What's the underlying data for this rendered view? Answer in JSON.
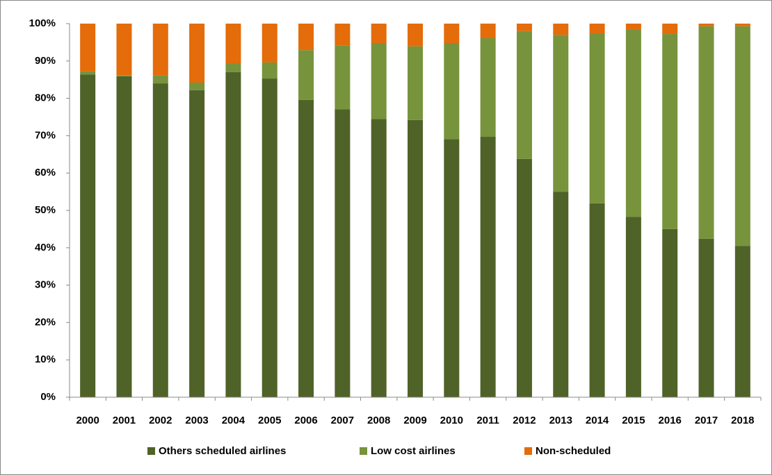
{
  "chart_data": {
    "type": "stacked-bar",
    "categories": [
      "2000",
      "2001",
      "2002",
      "2003",
      "2004",
      "2005",
      "2006",
      "2007",
      "2008",
      "2009",
      "2010",
      "2011",
      "2012",
      "2013",
      "2014",
      "2015",
      "2016",
      "2017",
      "2018"
    ],
    "series": [
      {
        "name": "Others scheduled airlines",
        "color": "#4f6228",
        "values": [
          86.4,
          85.9,
          84.0,
          82.2,
          87.0,
          85.3,
          79.6,
          77.1,
          74.5,
          74.2,
          69.1,
          69.7,
          63.8,
          55.0,
          51.9,
          48.3,
          45.0,
          42.4,
          40.5
        ]
      },
      {
        "name": "Low cost airlines",
        "color": "#77933c",
        "values": [
          0.8,
          0.3,
          2.2,
          2.0,
          2.4,
          4.3,
          13.3,
          17.1,
          20.3,
          19.7,
          25.7,
          26.4,
          34.2,
          42.0,
          45.5,
          50.2,
          52.2,
          56.9,
          58.8
        ]
      },
      {
        "name": "Non-scheduled",
        "color": "#e46c0a",
        "values": [
          12.8,
          13.8,
          13.8,
          15.8,
          10.6,
          10.4,
          7.1,
          5.8,
          5.2,
          6.1,
          5.2,
          3.9,
          2.0,
          3.0,
          2.6,
          1.5,
          2.8,
          0.7,
          0.7
        ]
      }
    ],
    "ylim": [
      0,
      100
    ],
    "yticks": [
      {
        "value": 0,
        "label": "0%"
      },
      {
        "value": 10,
        "label": "10%"
      },
      {
        "value": 20,
        "label": "20%"
      },
      {
        "value": 30,
        "label": "30%"
      },
      {
        "value": 40,
        "label": "40%"
      },
      {
        "value": 50,
        "label": "50%"
      },
      {
        "value": 60,
        "label": "60%"
      },
      {
        "value": 70,
        "label": "70%"
      },
      {
        "value": 80,
        "label": "80%"
      },
      {
        "value": 90,
        "label": "90%"
      },
      {
        "value": 100,
        "label": "100%"
      }
    ],
    "grid": false,
    "legend": "bottom"
  }
}
